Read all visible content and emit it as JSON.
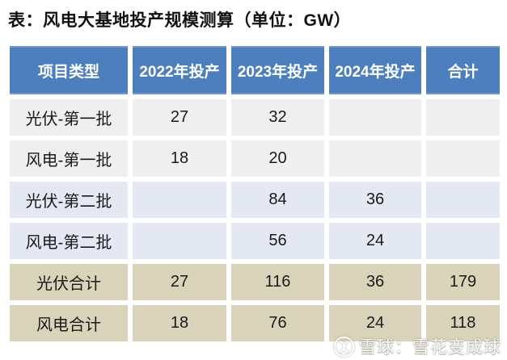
{
  "title": "表：风电大基地投产规模测算（单位：GW）",
  "table": {
    "headers": [
      "项目类型",
      "2022年投产",
      "2023年投产",
      "2024年投产",
      "合计"
    ],
    "rows": [
      {
        "label": "光伏-第一批",
        "group": "batch1",
        "values": [
          "27",
          "32",
          "",
          ""
        ]
      },
      {
        "label": "风电-第一批",
        "group": "batch1",
        "values": [
          "18",
          "20",
          "",
          ""
        ]
      },
      {
        "label": "光伏-第二批",
        "group": "batch2",
        "values": [
          "",
          "84",
          "36",
          ""
        ]
      },
      {
        "label": "风电-第二批",
        "group": "batch2",
        "values": [
          "",
          "56",
          "24",
          ""
        ]
      },
      {
        "label": "光伏合计",
        "group": "total",
        "values": [
          "27",
          "116",
          "36",
          "179"
        ]
      },
      {
        "label": "风电合计",
        "group": "total",
        "values": [
          "18",
          "76",
          "24",
          "118"
        ]
      }
    ]
  },
  "watermark": {
    "logo_icon": "xueqiu-logo",
    "text": "雪球：雪花变成球"
  },
  "colors": {
    "header_bg": "#4d7ebd",
    "header_text": "#ffffff",
    "row_batch1_bg": "#f0eff0",
    "row_batch2_bg": "#e3e8f2",
    "row_total_bg": "#d9d3ba",
    "cell_text": "#1a1a1a",
    "title_text": "#111111",
    "watermark_text": "#cdc9bd"
  },
  "chart_data": {
    "type": "table",
    "title": "表：风电大基地投产规模测算（单位：GW）",
    "unit": "GW",
    "columns": [
      "项目类型",
      "2022年投产",
      "2023年投产",
      "2024年投产",
      "合计"
    ],
    "rows": [
      [
        "光伏-第一批",
        27,
        32,
        null,
        null
      ],
      [
        "风电-第一批",
        18,
        20,
        null,
        null
      ],
      [
        "光伏-第二批",
        null,
        84,
        36,
        null
      ],
      [
        "风电-第二批",
        null,
        56,
        24,
        null
      ],
      [
        "光伏合计",
        27,
        116,
        36,
        179
      ],
      [
        "风电合计",
        18,
        76,
        24,
        118
      ]
    ]
  }
}
